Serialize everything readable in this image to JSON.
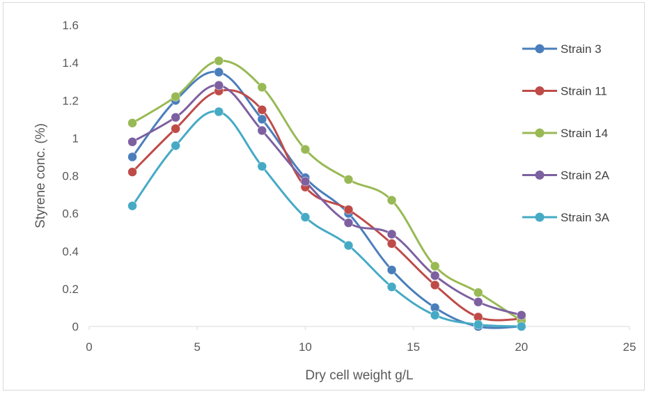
{
  "chart_data": {
    "type": "line",
    "smooth": true,
    "xlabel": "Dry cell weight g/L",
    "ylabel": "Styrene conc. (%)",
    "xlim": [
      0,
      25
    ],
    "ylim": [
      0,
      1.6
    ],
    "x_ticks": [
      "0",
      "5",
      "10",
      "15",
      "20",
      "25"
    ],
    "y_ticks": [
      "0",
      "0.2",
      "0.4",
      "0.6",
      "0.8",
      "1",
      "1.2",
      "1.4",
      "1.6"
    ],
    "grid": false,
    "legend_position": "right",
    "x": [
      2,
      4,
      6,
      8,
      10,
      12,
      14,
      16,
      18,
      20
    ],
    "series": [
      {
        "name": "Strain 3",
        "color": "#4a7ebb",
        "values": [
          0.9,
          1.2,
          1.35,
          1.1,
          0.79,
          0.6,
          0.3,
          0.1,
          0.0,
          0.0
        ]
      },
      {
        "name": "Strain 11",
        "color": "#be4b48",
        "values": [
          0.82,
          1.05,
          1.25,
          1.15,
          0.74,
          0.62,
          0.44,
          0.22,
          0.05,
          0.04
        ]
      },
      {
        "name": "Strain 14",
        "color": "#98b954",
        "values": [
          1.08,
          1.22,
          1.41,
          1.27,
          0.94,
          0.78,
          0.67,
          0.32,
          0.18,
          0.03
        ]
      },
      {
        "name": "Strain 2A",
        "color": "#7d60a0",
        "values": [
          0.98,
          1.11,
          1.28,
          1.04,
          0.77,
          0.55,
          0.49,
          0.27,
          0.13,
          0.06
        ]
      },
      {
        "name": "Strain 3A",
        "color": "#46aac5",
        "values": [
          0.64,
          0.96,
          1.14,
          0.85,
          0.58,
          0.43,
          0.21,
          0.06,
          0.01,
          0.0
        ]
      }
    ]
  }
}
